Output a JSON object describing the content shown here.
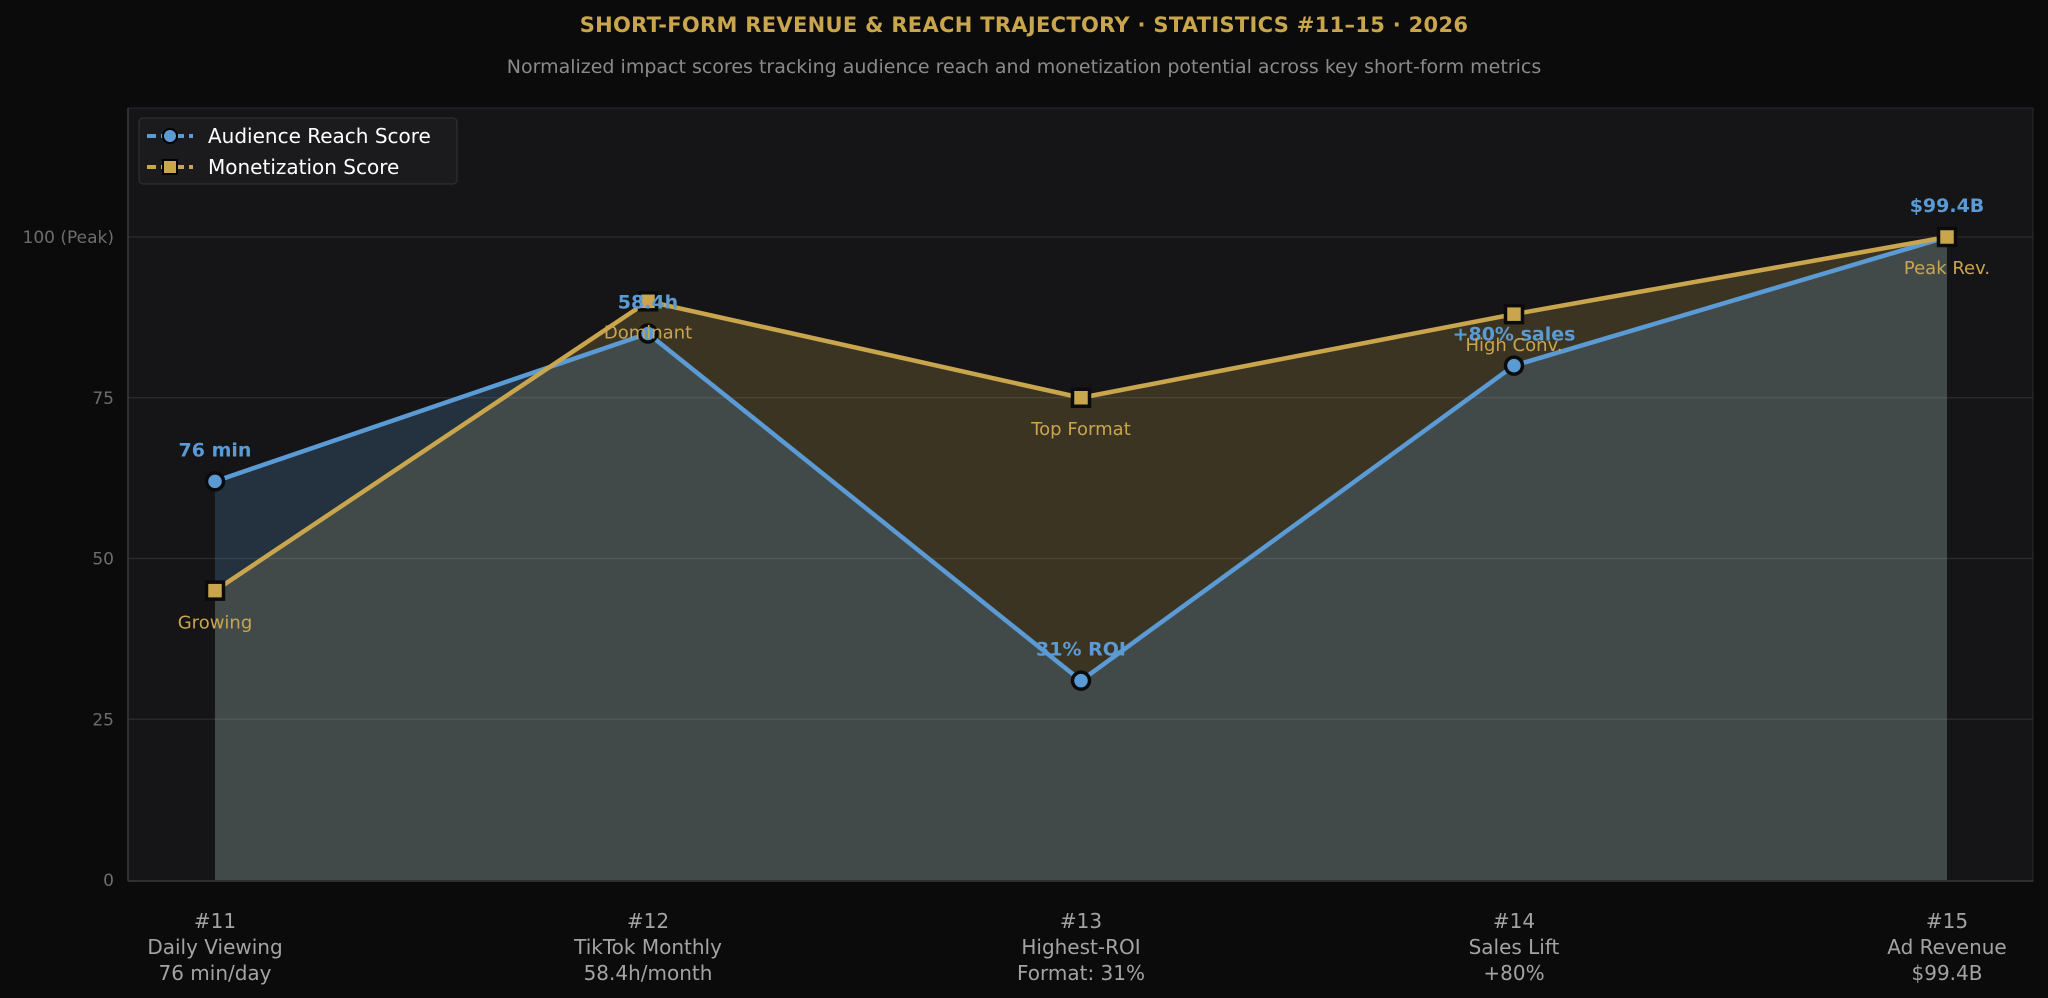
{
  "chart_data": {
    "type": "line",
    "title": "SHORT-FORM REVENUE & REACH TRAJECTORY  ·  STATISTICS #11–15  ·  2026",
    "subtitle": "Normalized impact scores tracking audience reach and monetization potential across key short-form metrics",
    "xlabel": "",
    "ylabel": "",
    "ylim": [
      0,
      120
    ],
    "yticks": [
      {
        "value": 0,
        "label": "0"
      },
      {
        "value": 25,
        "label": "25"
      },
      {
        "value": 50,
        "label": "50"
      },
      {
        "value": 75,
        "label": "75"
      },
      {
        "value": 100,
        "label": "100 (Peak)"
      }
    ],
    "grid": "horizontal",
    "legend_position": "top-left",
    "categories": [
      [
        "#11",
        "Daily Viewing",
        "76 min/day"
      ],
      [
        "#12",
        "TikTok Monthly",
        "58.4h/month"
      ],
      [
        "#13",
        "Highest-ROI",
        "Format: 31%"
      ],
      [
        "#14",
        "Sales Lift",
        "+80%"
      ],
      [
        "#15",
        "Ad Revenue",
        "$99.4B"
      ]
    ],
    "series": [
      {
        "name": "Audience Reach Score",
        "color": "#5b9bd5",
        "marker": "circle",
        "values": [
          62,
          85,
          31,
          80,
          100
        ],
        "annotations": [
          "76 min",
          "58.4h",
          "31% ROI",
          "+80% sales",
          "$99.4B"
        ]
      },
      {
        "name": "Monetization Score",
        "color": "#c9a54e",
        "marker": "square",
        "values": [
          45,
          90,
          75,
          88,
          100
        ],
        "annotations": [
          "Growing",
          "Dominant",
          "Top Format",
          "High Conv.",
          "Peak Rev."
        ]
      }
    ]
  }
}
